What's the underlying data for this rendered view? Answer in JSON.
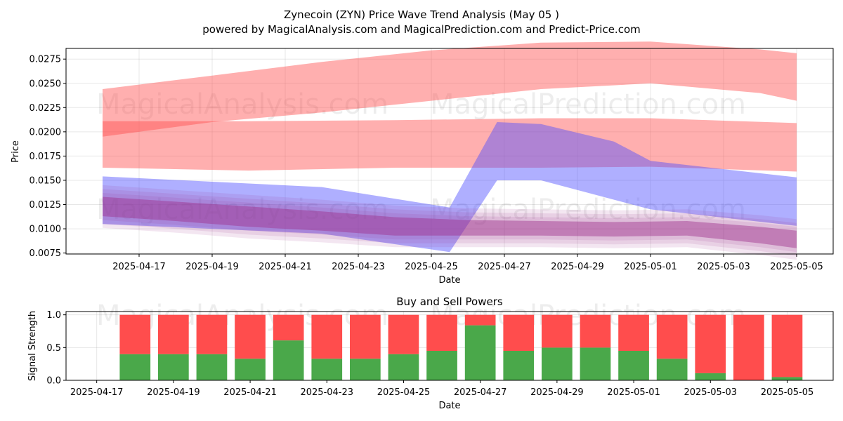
{
  "title_line1": "Zynecoin (ZYN) Price Wave Trend Analysis (May 05 )",
  "title_line2": "powered by MagicalAnalysis.com and MagicalPrediction.com and Predict-Price.com",
  "watermarks": [
    "MagicalAnalysis.com",
    "MagicalPrediction.com"
  ],
  "colors": {
    "up": "#ff4d4d",
    "down": "#4d4dff",
    "buy": "#4aa84a",
    "sell": "#ff4d4d",
    "accent_purple": "#a0308c"
  },
  "chart_data": [
    {
      "type": "area",
      "xlabel": "Date",
      "ylabel": "Price",
      "xlim": [
        "2025-04-15",
        "2025-05-06"
      ],
      "ylim": [
        0.0074,
        0.0286
      ],
      "grid": true,
      "x_ticks": [
        "2025-04-17",
        "2025-04-19",
        "2025-04-21",
        "2025-04-23",
        "2025-04-25",
        "2025-04-27",
        "2025-04-29",
        "2025-05-01",
        "2025-05-03",
        "2025-05-05"
      ],
      "y_ticks": [
        "0.0075",
        "0.0100",
        "0.0125",
        "0.0150",
        "0.0175",
        "0.0200",
        "0.0225",
        "0.0250",
        "0.0275"
      ],
      "bands": [
        {
          "color": "red",
          "dates": [
            "2025-04-16",
            "2025-04-19",
            "2025-04-22",
            "2025-04-25",
            "2025-04-28",
            "2025-05-01",
            "2025-05-04",
            "2025-05-05"
          ],
          "upper": [
            0.0244,
            0.0258,
            0.0272,
            0.0284,
            0.0292,
            0.0293,
            0.0285,
            0.0281
          ],
          "lower": [
            0.0195,
            0.021,
            0.022,
            0.0232,
            0.0244,
            0.025,
            0.024,
            0.0232
          ]
        },
        {
          "color": "red",
          "dates": [
            "2025-04-16",
            "2025-04-20",
            "2025-04-24",
            "2025-04-28",
            "2025-05-01",
            "2025-05-05"
          ],
          "upper": [
            0.0211,
            0.0211,
            0.0212,
            0.0214,
            0.0214,
            0.0209
          ],
          "lower": [
            0.0163,
            0.016,
            0.0163,
            0.0163,
            0.0164,
            0.0159
          ]
        },
        {
          "color": "blue",
          "dates": [
            "2025-04-16",
            "2025-04-22",
            "2025-04-25.5",
            "2025-04-26.8",
            "2025-04-28",
            "2025-04-30",
            "2025-05-01",
            "2025-05-05"
          ],
          "upper": [
            0.0154,
            0.0143,
            0.0122,
            0.021,
            0.0208,
            0.019,
            0.017,
            0.0153
          ],
          "lower": [
            0.0105,
            0.0095,
            0.0076,
            0.015,
            0.015,
            0.013,
            0.012,
            0.0103
          ]
        },
        {
          "color": "purple",
          "dates": [
            "2025-04-16",
            "2025-04-18",
            "2025-04-20",
            "2025-04-22",
            "2025-04-24",
            "2025-04-26",
            "2025-04-28",
            "2025-04-30",
            "2025-05-02",
            "2025-05-04",
            "2025-05-05"
          ],
          "upper": [
            0.0133,
            0.0128,
            0.0123,
            0.0118,
            0.0112,
            0.0109,
            0.0108,
            0.0107,
            0.0108,
            0.0102,
            0.0098
          ],
          "lower": [
            0.0113,
            0.0108,
            0.0102,
            0.0098,
            0.0093,
            0.0093,
            0.0093,
            0.0092,
            0.0093,
            0.0085,
            0.008
          ]
        }
      ]
    },
    {
      "type": "bar",
      "title": "Buy and Sell Powers",
      "xlabel": "Date",
      "ylabel": "Signal Strength",
      "xlim": [
        "2025-04-16.2",
        "2025-05-06.2"
      ],
      "ylim": [
        0,
        1.05
      ],
      "grid": true,
      "x_ticks": [
        "2025-04-17",
        "2025-04-19",
        "2025-04-21",
        "2025-04-23",
        "2025-04-25",
        "2025-04-27",
        "2025-04-29",
        "2025-05-01",
        "2025-05-03",
        "2025-05-05"
      ],
      "y_ticks": [
        "0.0",
        "0.5",
        "1.0"
      ],
      "categories": [
        "2025-04-18",
        "2025-04-19",
        "2025-04-20",
        "2025-04-21",
        "2025-04-22",
        "2025-04-23",
        "2025-04-24",
        "2025-04-25",
        "2025-04-26",
        "2025-04-27",
        "2025-04-28",
        "2025-04-29",
        "2025-04-30",
        "2025-05-01",
        "2025-05-02",
        "2025-05-03",
        "2025-05-04",
        "2025-05-05"
      ],
      "series": [
        {
          "values": [
            0.4,
            0.4,
            0.4,
            0.33,
            0.61,
            0.33,
            0.33,
            0.4,
            0.45,
            0.84,
            0.45,
            0.5,
            0.5,
            0.45,
            0.33,
            0.11,
            0.0,
            0.05
          ]
        },
        {
          "values": [
            0.6,
            0.6,
            0.6,
            0.67,
            0.39,
            0.67,
            0.67,
            0.6,
            0.55,
            0.16,
            0.55,
            0.5,
            0.5,
            0.55,
            0.67,
            0.89,
            1.0,
            0.95
          ]
        }
      ]
    }
  ]
}
